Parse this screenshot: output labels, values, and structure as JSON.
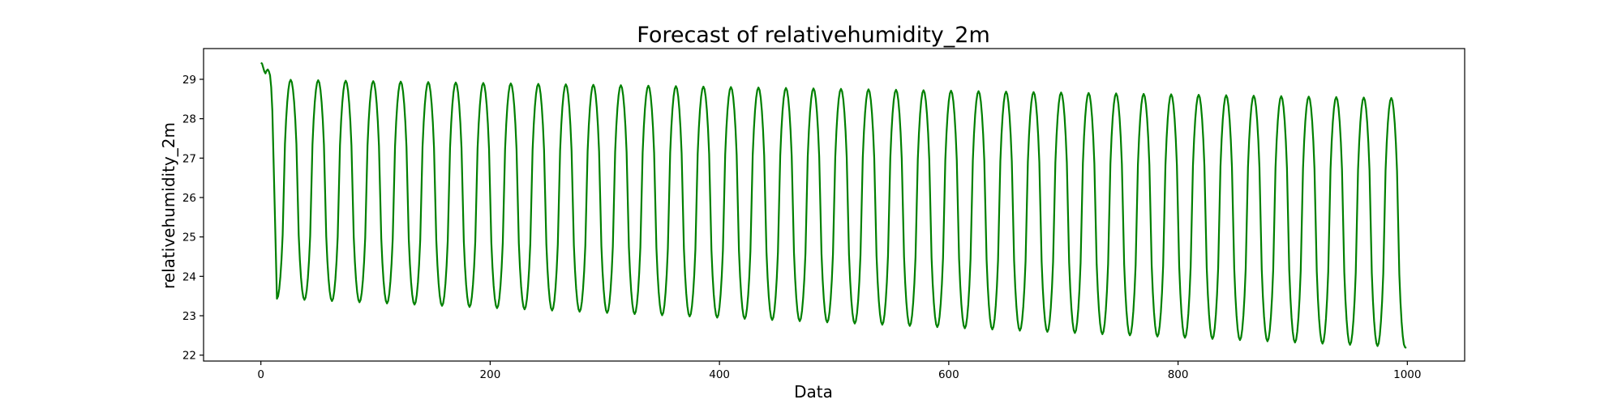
{
  "chart_data": {
    "type": "line",
    "title": "Forecast of relativehumidity_2m",
    "xlabel": "Data",
    "ylabel": "relativehumidity_2m",
    "xlim": [
      -50,
      1050
    ],
    "ylim": [
      21.85,
      29.78
    ],
    "x_ticks": [
      0,
      200,
      400,
      600,
      800,
      1000
    ],
    "y_ticks": [
      22,
      23,
      24,
      25,
      26,
      27,
      28,
      29
    ],
    "grid": false,
    "legend": "none",
    "series": [
      {
        "color": "#008000",
        "x_range": [
          0,
          999
        ],
        "start_values": [
          29.42,
          29.4,
          29.3,
          29.2,
          29.15,
          29.22,
          29.25,
          29.2,
          29.1,
          28.8,
          28.2
        ],
        "period": 24,
        "first_trough_x": 14,
        "first_peak_x": 32,
        "initial_trough": 23.45,
        "initial_peak": 29.0,
        "final_trough": 22.2,
        "final_peak": 28.52,
        "last_value": 22.18
      }
    ]
  }
}
